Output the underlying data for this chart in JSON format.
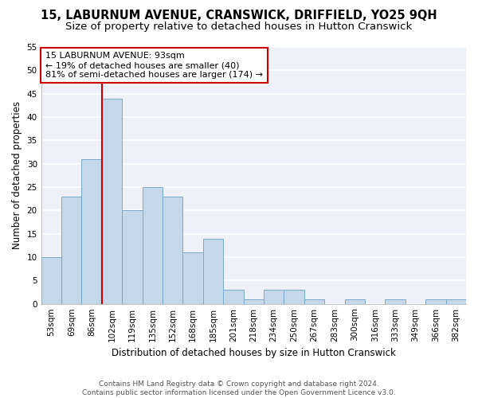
{
  "title": "15, LABURNUM AVENUE, CRANSWICK, DRIFFIELD, YO25 9QH",
  "subtitle": "Size of property relative to detached houses in Hutton Cranswick",
  "xlabel": "Distribution of detached houses by size in Hutton Cranswick",
  "ylabel": "Number of detached properties",
  "footer1": "Contains HM Land Registry data © Crown copyright and database right 2024.",
  "footer2": "Contains public sector information licensed under the Open Government Licence v3.0.",
  "categories": [
    "53sqm",
    "69sqm",
    "86sqm",
    "102sqm",
    "119sqm",
    "135sqm",
    "152sqm",
    "168sqm",
    "185sqm",
    "201sqm",
    "218sqm",
    "234sqm",
    "250sqm",
    "267sqm",
    "283sqm",
    "300sqm",
    "316sqm",
    "333sqm",
    "349sqm",
    "366sqm",
    "382sqm"
  ],
  "values": [
    10,
    23,
    31,
    44,
    20,
    25,
    23,
    11,
    14,
    3,
    1,
    3,
    3,
    1,
    0,
    1,
    0,
    1,
    0,
    1,
    1
  ],
  "bar_color": "#c5d8ea",
  "bar_edgecolor": "#7aaac8",
  "ylim": [
    0,
    55
  ],
  "yticks": [
    0,
    5,
    10,
    15,
    20,
    25,
    30,
    35,
    40,
    45,
    50,
    55
  ],
  "property_line_x": 2.5,
  "annotation_title": "15 LABURNUM AVENUE: 93sqm",
  "annotation_line1": "← 19% of detached houses are smaller (40)",
  "annotation_line2": "81% of semi-detached houses are larger (174) →",
  "vline_color": "#cc0000",
  "annotation_box_edgecolor": "#cc0000",
  "background_color": "#ffffff",
  "plot_bg_color": "#eef2f8",
  "grid_color": "#ffffff",
  "title_fontsize": 10.5,
  "subtitle_fontsize": 9.5,
  "label_fontsize": 8.5,
  "tick_fontsize": 7.5,
  "annotation_fontsize": 8,
  "footer_fontsize": 6.5
}
